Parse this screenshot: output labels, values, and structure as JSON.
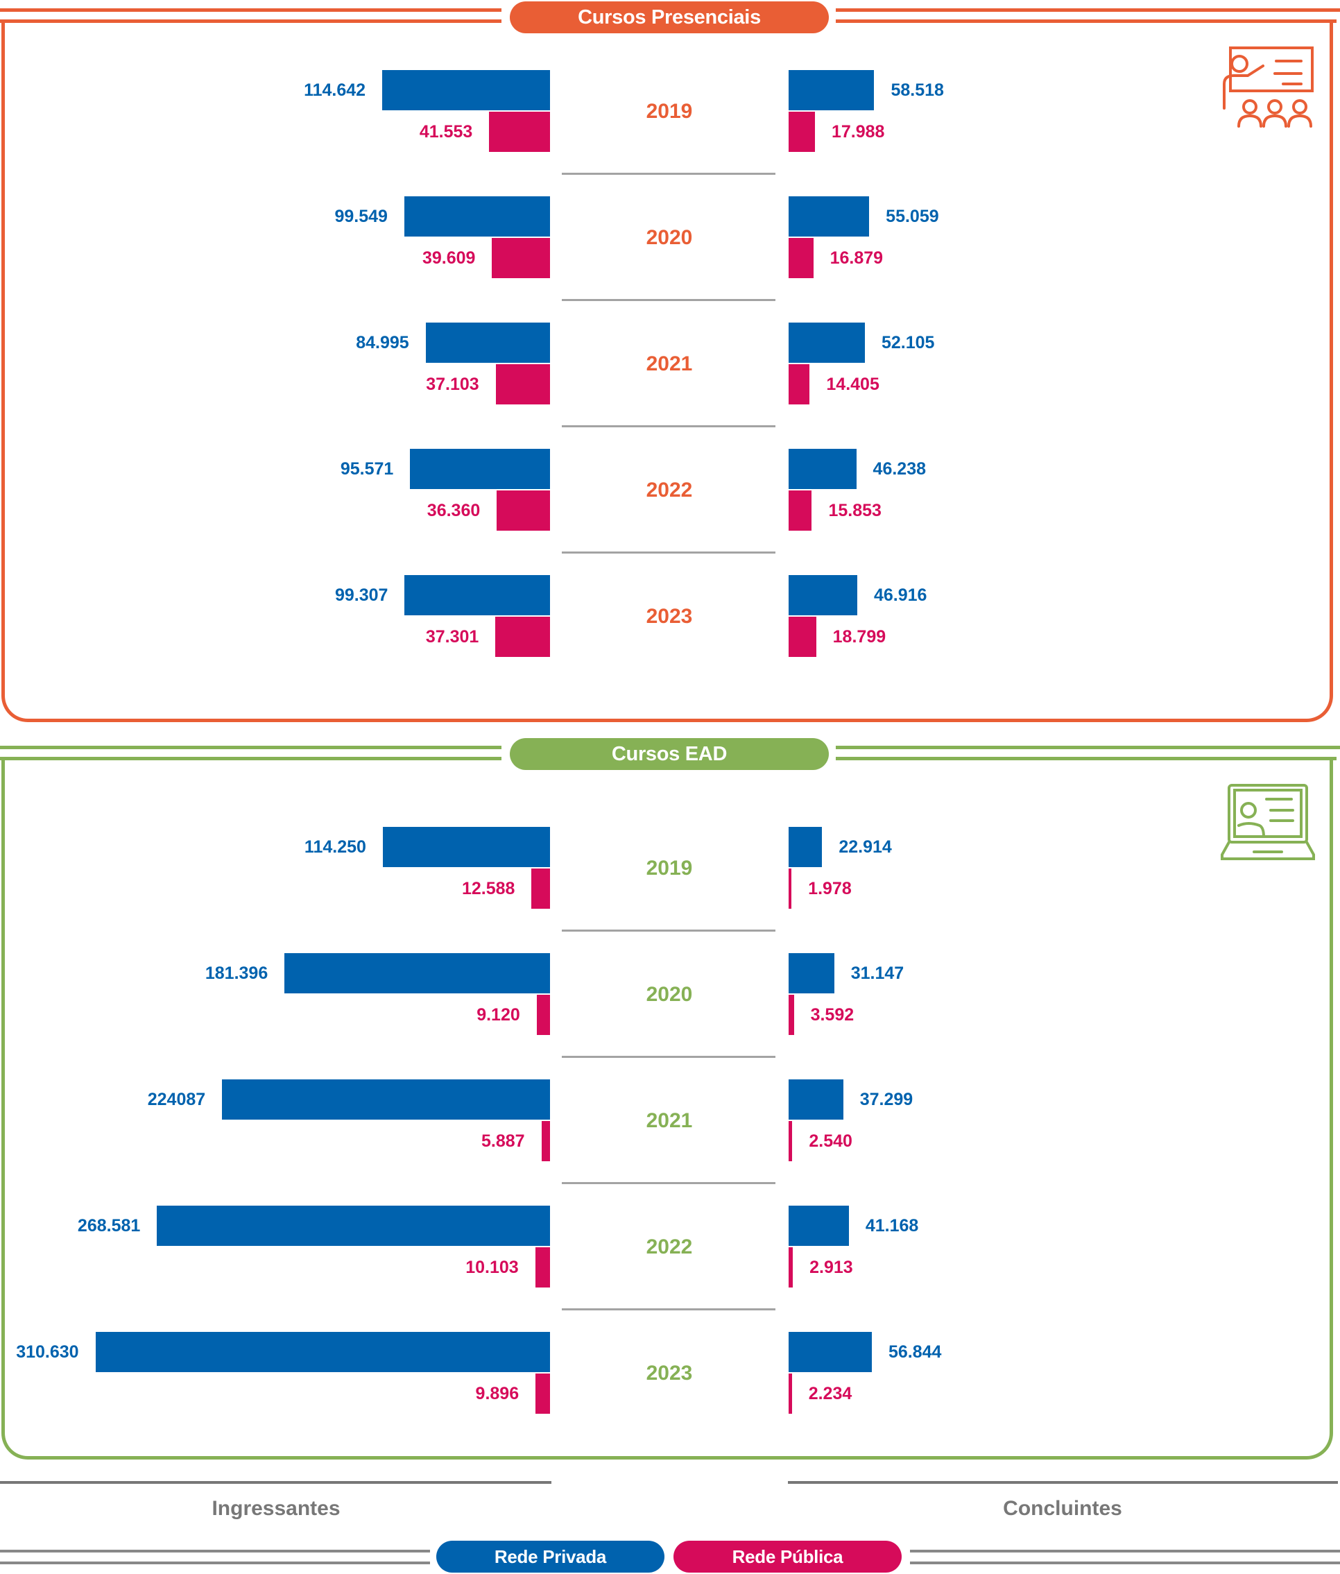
{
  "colors": {
    "presencial": "#E95E35",
    "ead": "#86B155",
    "privada": "#0062AE",
    "publica": "#D60B5A",
    "neutral": "#777777"
  },
  "chart_data": [
    {
      "type": "bar",
      "title": "Cursos Presenciais",
      "icon": "presentation-classroom-icon",
      "categories": [
        "2019",
        "2020",
        "2021",
        "2022",
        "2023"
      ],
      "groups": [
        "Ingressantes",
        "Concluintes"
      ],
      "series": [
        {
          "name": "Rede Privada",
          "group": "Ingressantes",
          "values": [
            114642,
            99549,
            84995,
            95571,
            99307
          ],
          "labels": [
            "114.642",
            "99.549",
            "84.995",
            "95.571",
            "99.307"
          ]
        },
        {
          "name": "Rede Pública",
          "group": "Ingressantes",
          "values": [
            41553,
            39609,
            37103,
            36360,
            37301
          ],
          "labels": [
            "41.553",
            "39.609",
            "37.103",
            "36.360",
            "37.301"
          ]
        },
        {
          "name": "Rede Privada",
          "group": "Concluintes",
          "values": [
            58518,
            55059,
            52105,
            46238,
            46916
          ],
          "labels": [
            "58.518",
            "55.059",
            "52.105",
            "46.238",
            "46.916"
          ]
        },
        {
          "name": "Rede Pública",
          "group": "Concluintes",
          "values": [
            17988,
            16879,
            14405,
            15853,
            18799
          ],
          "labels": [
            "17.988",
            "16.879",
            "14.405",
            "15.853",
            "18.799"
          ]
        }
      ]
    },
    {
      "type": "bar",
      "title": "Cursos EAD",
      "icon": "laptop-online-class-icon",
      "categories": [
        "2019",
        "2020",
        "2021",
        "2022",
        "2023"
      ],
      "groups": [
        "Ingressantes",
        "Concluintes"
      ],
      "series": [
        {
          "name": "Rede Privada",
          "group": "Ingressantes",
          "values": [
            114250,
            181396,
            224087,
            268581,
            310630
          ],
          "labels": [
            "114.250",
            "181.396",
            "224087",
            "268.581",
            "310.630"
          ]
        },
        {
          "name": "Rede Pública",
          "group": "Ingressantes",
          "values": [
            12588,
            9120,
            5887,
            10103,
            9896
          ],
          "labels": [
            "12.588",
            "9.120",
            "5.887",
            "10.103",
            "9.896"
          ]
        },
        {
          "name": "Rede Privada",
          "group": "Concluintes",
          "values": [
            22914,
            31147,
            37299,
            41168,
            56844
          ],
          "labels": [
            "22.914",
            "31.147",
            "37.299",
            "41.168",
            "56.844"
          ]
        },
        {
          "name": "Rede Pública",
          "group": "Concluintes",
          "values": [
            1978,
            3592,
            2540,
            2913,
            2234
          ],
          "labels": [
            "1.978",
            "3.592",
            "2.540",
            "2.913",
            "2.234"
          ]
        }
      ]
    }
  ],
  "axis": {
    "left_label": "Ingressantes",
    "right_label": "Concluintes"
  },
  "legend": {
    "privada": "Rede Privada",
    "publica": "Rede Pública"
  }
}
